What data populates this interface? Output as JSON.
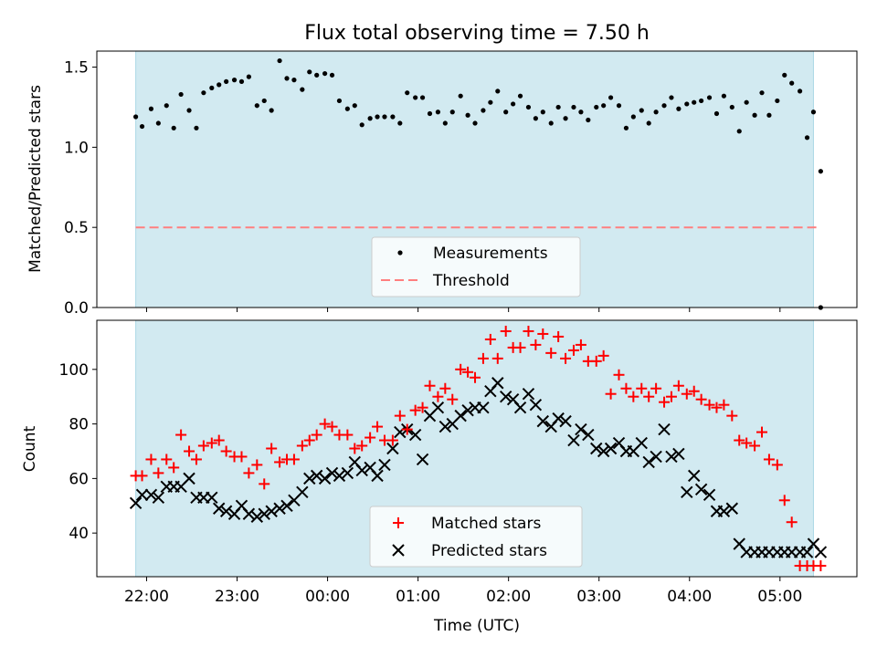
{
  "chart_data": [
    {
      "type": "scatter",
      "title": "Flux total observing time = 7.50 h",
      "ylabel": "Matched/Predicted stars",
      "xlabel": "",
      "xlim": [
        21.45,
        29.85
      ],
      "ylim": [
        0.0,
        1.6
      ],
      "yticks": [
        0.0,
        0.5,
        1.0,
        1.5
      ],
      "ytick_labels": [
        "0.0",
        "0.5",
        "1.0",
        "1.5"
      ],
      "shaded_region": [
        21.88,
        29.37
      ],
      "colors": {
        "shade": "#add8e6",
        "threshold": "#ff7f7f",
        "points": "#000000"
      },
      "legend": {
        "placement": "lower-center",
        "entries": [
          {
            "label": "Measurements",
            "marker": "dot"
          },
          {
            "label": "Threshold",
            "marker": "dashed-line"
          }
        ]
      },
      "series": [
        {
          "name": "Measurements",
          "x": [
            21.88,
            21.95,
            22.05,
            22.13,
            22.22,
            22.3,
            22.38,
            22.47,
            22.55,
            22.63,
            22.72,
            22.8,
            22.88,
            22.97,
            23.05,
            23.13,
            23.22,
            23.3,
            23.38,
            23.47,
            23.55,
            23.63,
            23.72,
            23.8,
            23.88,
            23.97,
            24.05,
            24.13,
            24.22,
            24.3,
            24.38,
            24.47,
            24.55,
            24.63,
            24.72,
            24.8,
            24.88,
            24.97,
            25.05,
            25.13,
            25.22,
            25.3,
            25.38,
            25.47,
            25.55,
            25.63,
            25.72,
            25.8,
            25.88,
            25.97,
            26.05,
            26.13,
            26.22,
            26.3,
            26.38,
            26.47,
            26.55,
            26.63,
            26.72,
            26.8,
            26.88,
            26.97,
            27.05,
            27.13,
            27.22,
            27.3,
            27.38,
            27.47,
            27.55,
            27.63,
            27.72,
            27.8,
            27.88,
            27.97,
            28.05,
            28.13,
            28.22,
            28.3,
            28.38,
            28.47,
            28.55,
            28.63,
            28.72,
            28.8,
            28.88,
            28.97,
            29.05,
            29.13,
            29.22,
            29.3,
            29.37,
            29.45
          ],
          "y": [
            1.19,
            1.13,
            1.24,
            1.15,
            1.26,
            1.12,
            1.33,
            1.23,
            1.12,
            1.34,
            1.37,
            1.39,
            1.41,
            1.42,
            1.41,
            1.44,
            1.26,
            1.29,
            1.23,
            1.54,
            1.43,
            1.42,
            1.36,
            1.47,
            1.45,
            1.46,
            1.45,
            1.29,
            1.24,
            1.26,
            1.14,
            1.18,
            1.19,
            1.19,
            1.19,
            1.15,
            1.34,
            1.31,
            1.31,
            1.21,
            1.22,
            1.15,
            1.22,
            1.32,
            1.2,
            1.15,
            1.23,
            1.28,
            1.35,
            1.22,
            1.27,
            1.32,
            1.25,
            1.18,
            1.22,
            1.15,
            1.25,
            1.18,
            1.25,
            1.22,
            1.17,
            1.25,
            1.26,
            1.31,
            1.26,
            1.12,
            1.19,
            1.23,
            1.15,
            1.22,
            1.26,
            1.31,
            1.24,
            1.27,
            1.28,
            1.29,
            1.31,
            1.21,
            1.32,
            1.25,
            1.1,
            1.28,
            1.2,
            1.34,
            1.2,
            1.29,
            1.45,
            1.4,
            1.35,
            1.06,
            1.22,
            0.85
          ]
        },
        {
          "name": "Threshold",
          "x": [
            21.88,
            29.45
          ],
          "y": [
            0.5,
            0.5
          ]
        }
      ],
      "extra_point": {
        "x": 29.45,
        "y": 0.0
      }
    },
    {
      "type": "scatter",
      "title": "",
      "ylabel": "Count",
      "xlabel": "Time (UTC)",
      "xlim": [
        21.45,
        29.85
      ],
      "ylim": [
        24,
        118
      ],
      "yticks": [
        40,
        60,
        80,
        100
      ],
      "ytick_labels": [
        "40",
        "60",
        "80",
        "100"
      ],
      "xticks": [
        22,
        23,
        24,
        25,
        26,
        27,
        28,
        29
      ],
      "xtick_labels": [
        "22:00",
        "23:00",
        "00:00",
        "01:00",
        "02:00",
        "03:00",
        "04:00",
        "05:00"
      ],
      "shaded_region": [
        21.88,
        29.37
      ],
      "colors": {
        "shade": "#add8e6",
        "matched": "#ff0000",
        "predicted": "#000000"
      },
      "legend": {
        "placement": "lower-center",
        "entries": [
          {
            "label": "Matched stars",
            "marker": "plus"
          },
          {
            "label": "Predicted stars",
            "marker": "x"
          }
        ]
      },
      "series": [
        {
          "name": "Matched stars",
          "x": [
            21.88,
            21.95,
            22.05,
            22.13,
            22.22,
            22.3,
            22.38,
            22.47,
            22.55,
            22.63,
            22.72,
            22.8,
            22.88,
            22.97,
            23.05,
            23.13,
            23.22,
            23.3,
            23.38,
            23.47,
            23.55,
            23.63,
            23.72,
            23.8,
            23.88,
            23.97,
            24.05,
            24.13,
            24.22,
            24.3,
            24.38,
            24.47,
            24.55,
            24.63,
            24.72,
            24.8,
            24.88,
            24.97,
            25.05,
            25.13,
            25.22,
            25.3,
            25.38,
            25.47,
            25.55,
            25.63,
            25.72,
            25.8,
            25.88,
            25.97,
            26.05,
            26.13,
            26.22,
            26.3,
            26.38,
            26.47,
            26.55,
            26.63,
            26.72,
            26.8,
            26.88,
            26.97,
            27.05,
            27.13,
            27.22,
            27.3,
            27.38,
            27.47,
            27.55,
            27.63,
            27.72,
            27.8,
            27.88,
            27.97,
            28.05,
            28.13,
            28.22,
            28.3,
            28.38,
            28.47,
            28.55,
            28.63,
            28.72,
            28.8,
            28.88,
            28.97,
            29.05,
            29.13,
            29.22,
            29.3,
            29.37,
            29.45
          ],
          "y": [
            61,
            61,
            67,
            62,
            67,
            64,
            76,
            70,
            67,
            72,
            73,
            74,
            70,
            68,
            68,
            62,
            65,
            58,
            71,
            66,
            67,
            67,
            72,
            74,
            76,
            80,
            79,
            76,
            76,
            71,
            72,
            75,
            79,
            74,
            74,
            83,
            78,
            85,
            86,
            94,
            90,
            93,
            89,
            100,
            99,
            97,
            104,
            111,
            104,
            114,
            108,
            108,
            114,
            109,
            113,
            106,
            112,
            104,
            107,
            109,
            103,
            103,
            105,
            91,
            98,
            93,
            90,
            93,
            90,
            93,
            88,
            90,
            94,
            91,
            92,
            89,
            87,
            86,
            87,
            83,
            74,
            73,
            72,
            77,
            67,
            65,
            52,
            44,
            28,
            28,
            28,
            28
          ]
        },
        {
          "name": "Predicted stars",
          "x": [
            21.88,
            21.95,
            22.05,
            22.13,
            22.22,
            22.3,
            22.38,
            22.47,
            22.55,
            22.63,
            22.72,
            22.8,
            22.88,
            22.97,
            23.05,
            23.13,
            23.22,
            23.3,
            23.38,
            23.47,
            23.55,
            23.63,
            23.72,
            23.8,
            23.88,
            23.97,
            24.05,
            24.13,
            24.22,
            24.3,
            24.38,
            24.47,
            24.55,
            24.63,
            24.72,
            24.8,
            24.88,
            24.97,
            25.05,
            25.13,
            25.22,
            25.3,
            25.38,
            25.47,
            25.55,
            25.63,
            25.72,
            25.8,
            25.88,
            25.97,
            26.05,
            26.13,
            26.22,
            26.3,
            26.38,
            26.47,
            26.55,
            26.63,
            26.72,
            26.8,
            26.88,
            26.97,
            27.05,
            27.13,
            27.22,
            27.3,
            27.38,
            27.47,
            27.55,
            27.63,
            27.72,
            27.8,
            27.88,
            27.97,
            28.05,
            28.13,
            28.22,
            28.3,
            28.38,
            28.47,
            28.55,
            28.63,
            28.72,
            28.8,
            28.88,
            28.97,
            29.05,
            29.13,
            29.22,
            29.3,
            29.37,
            29.45
          ],
          "y": [
            51,
            54,
            54,
            53,
            57,
            57,
            57,
            60,
            53,
            53,
            53,
            49,
            48,
            47,
            50,
            47,
            46,
            47,
            48,
            49,
            50,
            52,
            55,
            60,
            61,
            60,
            62,
            61,
            62,
            66,
            63,
            64,
            61,
            65,
            71,
            77,
            78,
            76,
            67,
            83,
            86,
            79,
            80,
            83,
            85,
            86,
            86,
            92,
            95,
            90,
            89,
            86,
            91,
            87,
            81,
            79,
            82,
            81,
            74,
            78,
            76,
            71,
            70,
            71,
            73,
            70,
            70,
            73,
            66,
            68,
            78,
            68,
            69,
            55,
            61,
            56,
            54,
            48,
            48,
            49,
            36,
            33,
            33,
            33,
            33,
            33,
            33,
            33,
            33,
            33,
            36,
            33
          ]
        }
      ]
    }
  ]
}
